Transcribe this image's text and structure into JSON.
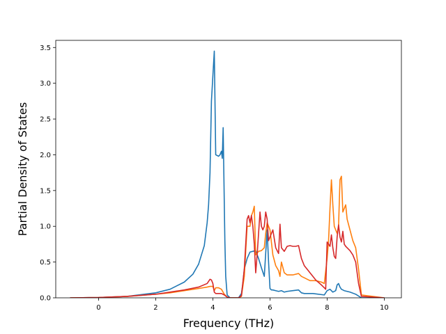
{
  "chart_data": {
    "type": "line",
    "title": "",
    "xlabel": "Frequency (THz)",
    "ylabel": "Partial Density of States",
    "xlim": [
      -1.5,
      10.6
    ],
    "ylim": [
      0,
      3.6
    ],
    "xticks": [
      0,
      2,
      4,
      6,
      8,
      10
    ],
    "yticks": [
      0.0,
      0.5,
      1.0,
      1.5,
      2.0,
      2.5,
      3.0,
      3.5
    ],
    "xtick_labels": [
      "0",
      "2",
      "4",
      "6",
      "8",
      "10"
    ],
    "ytick_labels": [
      "0.0",
      "0.5",
      "1.0",
      "1.5",
      "2.0",
      "2.5",
      "3.0",
      "3.5"
    ],
    "grid": false,
    "legend": "none",
    "series": [
      {
        "color": "#1f77b4",
        "x": [
          -1.0,
          0.0,
          1.0,
          2.0,
          2.5,
          3.0,
          3.3,
          3.5,
          3.7,
          3.8,
          3.85,
          3.9,
          3.95,
          4.0,
          4.05,
          4.1,
          4.2,
          4.25,
          4.3,
          4.33,
          4.36,
          4.38,
          4.42,
          4.45,
          4.5,
          4.6,
          4.8,
          4.9,
          5.0,
          5.05,
          5.1,
          5.2,
          5.3,
          5.4,
          5.5,
          5.6,
          5.7,
          5.8,
          5.9,
          5.95,
          6.0,
          6.05,
          6.1,
          6.2,
          6.3,
          6.4,
          6.5,
          6.6,
          6.8,
          7.0,
          7.1,
          7.2,
          7.5,
          7.9,
          8.0,
          8.1,
          8.2,
          8.3,
          8.35,
          8.4,
          8.45,
          8.5,
          8.6,
          8.8,
          9.0,
          9.2,
          10.0
        ],
        "y": [
          0.0,
          0.004,
          0.02,
          0.07,
          0.12,
          0.22,
          0.33,
          0.47,
          0.73,
          1.05,
          1.3,
          1.75,
          2.75,
          3.1,
          3.45,
          2.0,
          1.98,
          2.0,
          2.05,
          1.95,
          2.38,
          1.85,
          0.8,
          0.3,
          0.04,
          0.0,
          0.0,
          0.0,
          0.06,
          0.2,
          0.4,
          0.55,
          0.64,
          0.65,
          0.66,
          0.55,
          0.42,
          0.3,
          0.95,
          0.5,
          0.13,
          0.11,
          0.11,
          0.1,
          0.09,
          0.1,
          0.08,
          0.09,
          0.1,
          0.11,
          0.07,
          0.06,
          0.06,
          0.04,
          0.1,
          0.12,
          0.08,
          0.1,
          0.18,
          0.2,
          0.15,
          0.12,
          0.1,
          0.08,
          0.05,
          0.0,
          0.0
        ]
      },
      {
        "color": "#ff7f0e",
        "x": [
          -1.0,
          0.0,
          1.0,
          2.0,
          2.5,
          3.0,
          3.5,
          3.8,
          3.9,
          4.0,
          4.05,
          4.1,
          4.2,
          4.3,
          4.4,
          4.5,
          4.6,
          4.8,
          4.9,
          5.0,
          5.1,
          5.2,
          5.3,
          5.35,
          5.4,
          5.45,
          5.5,
          5.6,
          5.7,
          5.8,
          5.85,
          5.9,
          6.0,
          6.1,
          6.2,
          6.3,
          6.35,
          6.4,
          6.5,
          6.6,
          6.8,
          7.0,
          7.1,
          7.2,
          7.4,
          7.6,
          7.8,
          7.9,
          8.0,
          8.05,
          8.1,
          8.15,
          8.2,
          8.25,
          8.3,
          8.35,
          8.4,
          8.45,
          8.5,
          8.55,
          8.6,
          8.65,
          8.7,
          8.8,
          8.9,
          9.0,
          9.1,
          9.2,
          10.0
        ],
        "y": [
          0.0,
          0.004,
          0.02,
          0.05,
          0.07,
          0.1,
          0.13,
          0.15,
          0.16,
          0.16,
          0.1,
          0.14,
          0.14,
          0.12,
          0.05,
          0.01,
          0.0,
          0.0,
          0.0,
          0.02,
          0.3,
          1.0,
          1.0,
          1.15,
          1.2,
          1.28,
          0.6,
          0.65,
          0.66,
          0.7,
          0.9,
          1.05,
          0.95,
          0.6,
          0.45,
          0.38,
          0.3,
          0.5,
          0.35,
          0.32,
          0.32,
          0.34,
          0.3,
          0.28,
          0.24,
          0.24,
          0.22,
          0.2,
          0.55,
          0.8,
          1.25,
          1.65,
          1.3,
          1.0,
          0.95,
          0.9,
          1.0,
          1.65,
          1.7,
          1.2,
          1.25,
          1.3,
          1.1,
          0.95,
          0.8,
          0.7,
          0.4,
          0.04,
          0.0
        ]
      },
      {
        "color": "#d62728",
        "x": [
          -1.0,
          0.0,
          1.0,
          2.0,
          2.5,
          3.0,
          3.5,
          3.8,
          3.9,
          3.95,
          4.0,
          4.05,
          4.1,
          4.2,
          4.3,
          4.4,
          4.5,
          4.6,
          4.8,
          4.9,
          5.0,
          5.1,
          5.2,
          5.25,
          5.3,
          5.35,
          5.4,
          5.45,
          5.5,
          5.55,
          5.6,
          5.65,
          5.7,
          5.75,
          5.8,
          5.85,
          5.9,
          5.95,
          6.0,
          6.1,
          6.2,
          6.3,
          6.35,
          6.4,
          6.5,
          6.6,
          6.7,
          6.8,
          6.9,
          7.0,
          7.1,
          7.2,
          7.4,
          7.6,
          7.8,
          7.9,
          7.95,
          8.0,
          8.1,
          8.15,
          8.2,
          8.25,
          8.3,
          8.35,
          8.4,
          8.45,
          8.5,
          8.55,
          8.6,
          8.65,
          8.7,
          8.8,
          8.9,
          9.0,
          9.1,
          9.2,
          10.0
        ],
        "y": [
          0.0,
          0.004,
          0.02,
          0.05,
          0.08,
          0.11,
          0.15,
          0.2,
          0.26,
          0.25,
          0.2,
          0.08,
          0.06,
          0.06,
          0.06,
          0.04,
          0.01,
          0.0,
          0.0,
          0.0,
          0.03,
          0.4,
          1.1,
          1.15,
          1.05,
          1.15,
          1.0,
          0.75,
          0.35,
          0.6,
          0.9,
          1.2,
          1.0,
          0.95,
          1.0,
          1.2,
          1.1,
          0.8,
          0.85,
          0.95,
          0.7,
          0.62,
          1.03,
          0.7,
          0.65,
          0.72,
          0.73,
          0.72,
          0.72,
          0.73,
          0.55,
          0.45,
          0.35,
          0.25,
          0.18,
          0.14,
          0.12,
          0.78,
          0.72,
          0.88,
          0.7,
          0.58,
          0.55,
          0.85,
          1.02,
          0.85,
          0.78,
          0.93,
          0.75,
          0.72,
          0.7,
          0.66,
          0.6,
          0.5,
          0.2,
          0.02,
          0.0
        ]
      }
    ]
  }
}
